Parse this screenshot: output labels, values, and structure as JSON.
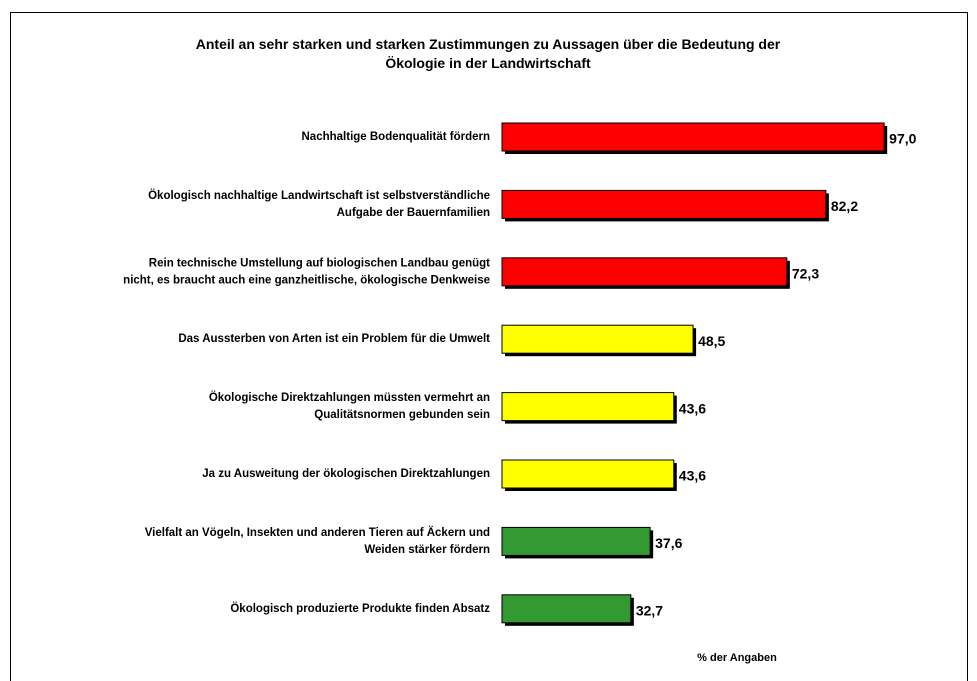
{
  "chart_data": {
    "type": "bar",
    "title": "Anteil an sehr starken und starken Zustimmungen zu Aussagen über die Bedeutung der\nÖkologie in der Landwirtschaft",
    "categories": [
      "Nachhaltige Bodenqualität fördern",
      "Ökologisch nachhaltige Landwirtschaft ist selbstverständliche\nAufgabe der Bauernfamilien",
      "Rein technische Umstellung auf biologischen Landbau genügt\nnicht, es braucht auch eine ganzheitlische, ökologische Denkweise",
      "Das Aussterben von Arten ist ein Problem für die Umwelt",
      "Ökologische Direktzahlungen müssten vermehrt an\nQualitätsnormen gebunden sein",
      "Ja zu Ausweitung der ökologischen Direktzahlungen",
      "Vielfalt an Vögeln, Insekten und anderen Tieren auf Äckern und\nWeiden stärker fördern",
      "Ökologisch produzierte Produkte finden Absatz"
    ],
    "values": [
      97.0,
      82.2,
      72.3,
      48.5,
      43.6,
      43.6,
      37.6,
      32.7
    ],
    "value_labels": [
      "97,0",
      "82,2",
      "72,3",
      "48,5",
      "43,6",
      "43,6",
      "37,6",
      "32,7"
    ],
    "colors": [
      "#ff0000",
      "#ff0000",
      "#ff0000",
      "#ffff00",
      "#ffff00",
      "#ffff00",
      "#339933",
      "#339933"
    ],
    "x_label": "% der Angaben"
  }
}
